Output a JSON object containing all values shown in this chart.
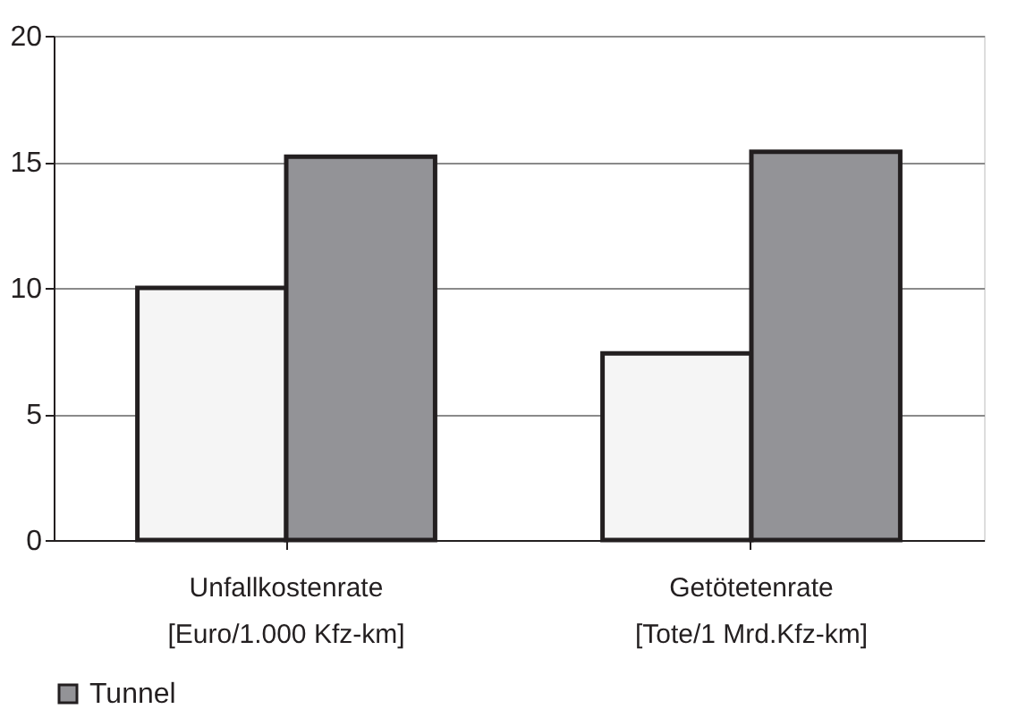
{
  "chart_data": {
    "type": "bar",
    "categories": [
      "Unfallkostenrate\n[Euro/1.000 Kfz-km]",
      "Getötetenrate\n[Tote/1 Mrd.Kfz-km]"
    ],
    "series": [
      {
        "color": "#f5f5f5",
        "values": [
          10.0,
          7.4
        ]
      },
      {
        "name": "Tunnel",
        "color": "#939397",
        "values": [
          15.2,
          15.4
        ]
      }
    ],
    "ylim": [
      0,
      20
    ],
    "yticks": [
      0,
      5,
      10,
      15,
      20
    ],
    "grid": "y",
    "legend": "bottom"
  }
}
